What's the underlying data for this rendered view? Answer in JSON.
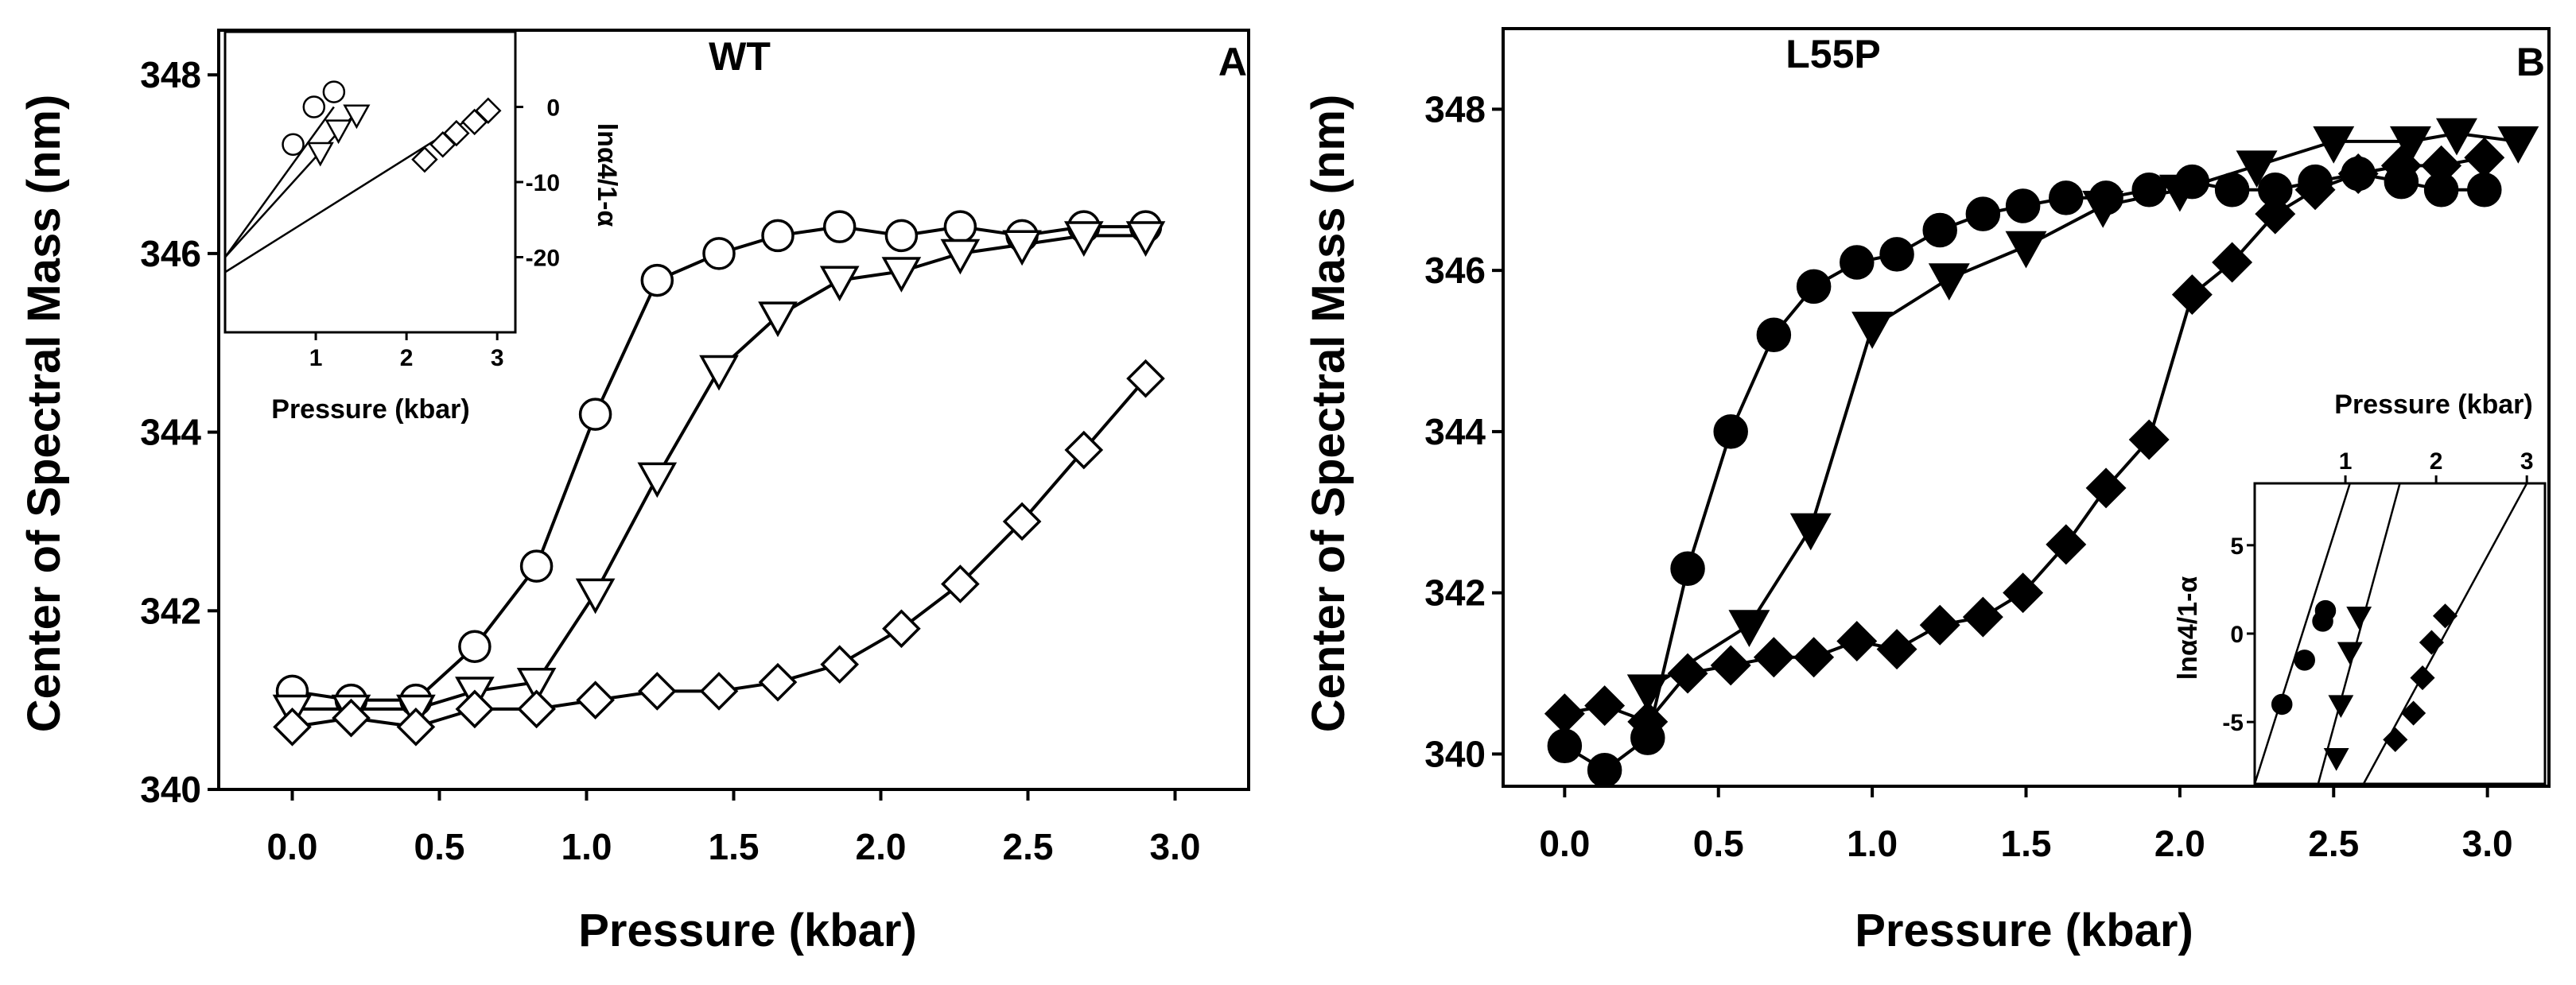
{
  "chart_data": [
    {
      "id": "A",
      "type": "line",
      "title": "WT",
      "panel_label": "A",
      "xlabel": "Pressure (kbar)",
      "ylabel": "Center of Spectral Mass (nm)",
      "xlim": [
        -0.25,
        3.25
      ],
      "ylim": [
        340,
        348.5
      ],
      "xticks": [
        "0.0",
        "0.5",
        "1.0",
        "1.5",
        "2.0",
        "2.5",
        "3.0"
      ],
      "yticks": [
        "340",
        "342",
        "344",
        "346",
        "348"
      ],
      "series": [
        {
          "name": "circle",
          "marker": "circle",
          "fill": "open",
          "x": [
            0.0,
            0.2,
            0.42,
            0.62,
            0.83,
            1.03,
            1.24,
            1.45,
            1.65,
            1.86,
            2.07,
            2.27,
            2.48,
            2.69,
            2.9
          ],
          "y": [
            341.1,
            341.0,
            341.0,
            341.6,
            342.5,
            344.2,
            345.7,
            346.0,
            346.2,
            346.3,
            346.2,
            346.3,
            346.2,
            346.3,
            346.3
          ]
        },
        {
          "name": "triangle",
          "marker": "triangle-down",
          "fill": "open",
          "x": [
            0.0,
            0.2,
            0.42,
            0.62,
            0.83,
            1.03,
            1.24,
            1.45,
            1.65,
            1.86,
            2.07,
            2.27,
            2.48,
            2.69,
            2.9
          ],
          "y": [
            340.9,
            340.9,
            340.9,
            341.1,
            341.2,
            342.2,
            343.5,
            344.7,
            345.3,
            345.7,
            345.8,
            346.0,
            346.1,
            346.2,
            346.2
          ]
        },
        {
          "name": "diamond",
          "marker": "diamond",
          "fill": "open",
          "x": [
            0.0,
            0.2,
            0.42,
            0.62,
            0.83,
            1.03,
            1.24,
            1.45,
            1.65,
            1.86,
            2.07,
            2.27,
            2.48,
            2.69,
            2.9
          ],
          "y": [
            340.7,
            340.8,
            340.7,
            340.9,
            340.9,
            341.0,
            341.1,
            341.1,
            341.2,
            341.4,
            341.8,
            342.3,
            343.0,
            343.8,
            344.6
          ]
        }
      ],
      "inset": {
        "xlabel": "Pressure (kbar)",
        "ylabel": "lnα4/1-α",
        "xlim": [
          0,
          3.2
        ],
        "ylim": [
          -30,
          10
        ],
        "xticks": [
          "1",
          "2",
          "3"
        ],
        "yticks": [
          "0",
          "-10",
          "-20"
        ],
        "series": [
          {
            "marker": "circle",
            "fill": "open",
            "x": [
              0.75,
              0.98,
              1.2
            ],
            "y": [
              -5,
              0,
              2
            ],
            "fit_x": [
              0,
              1.2
            ],
            "fit_y": [
              -20,
              0
            ]
          },
          {
            "marker": "triangle-down",
            "fill": "open",
            "x": [
              1.05,
              1.25,
              1.45
            ],
            "y": [
              -6,
              -3,
              -1
            ],
            "fit_x": [
              0,
              1.5
            ],
            "fit_y": [
              -20,
              0
            ]
          },
          {
            "marker": "diamond",
            "fill": "open",
            "x": [
              2.2,
              2.4,
              2.55,
              2.75,
              2.9
            ],
            "y": [
              -7,
              -5,
              -3.5,
              -2,
              -0.5
            ],
            "fit_x": [
              0,
              2.9
            ],
            "fit_y": [
              -22,
              0
            ]
          }
        ]
      }
    },
    {
      "id": "B",
      "type": "line",
      "title": "L55P",
      "panel_label": "B",
      "xlabel": "Pressure (kbar)",
      "ylabel": "Center of Spectral Mass (nm)",
      "xlim": [
        -0.2,
        3.2
      ],
      "ylim": [
        339.6,
        349.0
      ],
      "xticks": [
        "0.0",
        "0.5",
        "1.0",
        "1.5",
        "2.0",
        "2.5",
        "3.0"
      ],
      "yticks": [
        "340",
        "342",
        "344",
        "346",
        "348"
      ],
      "series": [
        {
          "name": "circle",
          "marker": "circle",
          "fill": "filled",
          "x": [
            0.0,
            0.13,
            0.27,
            0.4,
            0.54,
            0.68,
            0.81,
            0.95,
            1.08,
            1.22,
            1.36,
            1.49,
            1.63,
            1.76,
            1.9,
            2.04,
            2.17,
            2.31,
            2.44,
            2.58,
            2.72,
            2.85,
            2.99
          ],
          "y": [
            340.1,
            339.8,
            340.2,
            342.3,
            344.0,
            345.2,
            345.8,
            346.1,
            346.2,
            346.5,
            346.7,
            346.8,
            346.9,
            346.9,
            347.0,
            347.1,
            347.0,
            347.0,
            347.1,
            347.2,
            347.1,
            347.0,
            347.0
          ]
        },
        {
          "name": "triangle",
          "marker": "triangle-down",
          "fill": "filled",
          "x": [
            0.27,
            0.6,
            0.8,
            1.0,
            1.25,
            1.5,
            1.75,
            2.0,
            2.25,
            2.5,
            2.75,
            2.9,
            3.1
          ],
          "y": [
            340.8,
            341.6,
            342.8,
            345.3,
            345.9,
            346.3,
            346.8,
            347.0,
            347.3,
            347.6,
            347.6,
            347.7,
            347.6
          ]
        },
        {
          "name": "diamond",
          "marker": "diamond",
          "fill": "filled",
          "x": [
            0.0,
            0.13,
            0.27,
            0.4,
            0.54,
            0.68,
            0.81,
            0.95,
            1.08,
            1.22,
            1.36,
            1.49,
            1.63,
            1.76,
            1.9,
            2.04,
            2.17,
            2.31,
            2.44,
            2.58,
            2.72,
            2.85,
            2.99
          ],
          "y": [
            340.5,
            340.6,
            340.4,
            341.0,
            341.1,
            341.2,
            341.2,
            341.4,
            341.3,
            341.6,
            341.7,
            342.0,
            342.6,
            343.3,
            343.9,
            345.7,
            346.1,
            346.7,
            347.0,
            347.2,
            347.3,
            347.3,
            347.4
          ]
        }
      ],
      "inset": {
        "xlabel": "Pressure (kbar)",
        "ylabel": "lnα4/1-α",
        "xlim": [
          0,
          3.2
        ],
        "ylim": [
          -8.5,
          8.5
        ],
        "xticks": [
          "1",
          "2",
          "3"
        ],
        "yticks": [
          "5",
          "0",
          "-5"
        ],
        "series": [
          {
            "marker": "circle",
            "fill": "filled",
            "x": [
              0.3,
              0.55,
              0.75,
              0.78
            ],
            "y": [
              -4,
              -1.5,
              0.7,
              1.3
            ],
            "fit_x": [
              0,
              1.05
            ],
            "fit_y": [
              -8.5,
              8.5
            ]
          },
          {
            "marker": "triangle-down",
            "fill": "filled",
            "x": [
              0.9,
              0.95,
              1.05,
              1.15
            ],
            "y": [
              -7,
              -4,
              -1,
              1
            ],
            "fit_x": [
              0.7,
              1.6
            ],
            "fit_y": [
              -8.5,
              8.5
            ]
          },
          {
            "marker": "diamond",
            "fill": "filled",
            "x": [
              1.55,
              1.75,
              1.85,
              1.95,
              2.1
            ],
            "y": [
              -6,
              -4.5,
              -2.5,
              -0.5,
              1
            ],
            "fit_x": [
              1.2,
              3.0
            ],
            "fit_y": [
              -8.5,
              8.5
            ]
          }
        ]
      }
    }
  ]
}
